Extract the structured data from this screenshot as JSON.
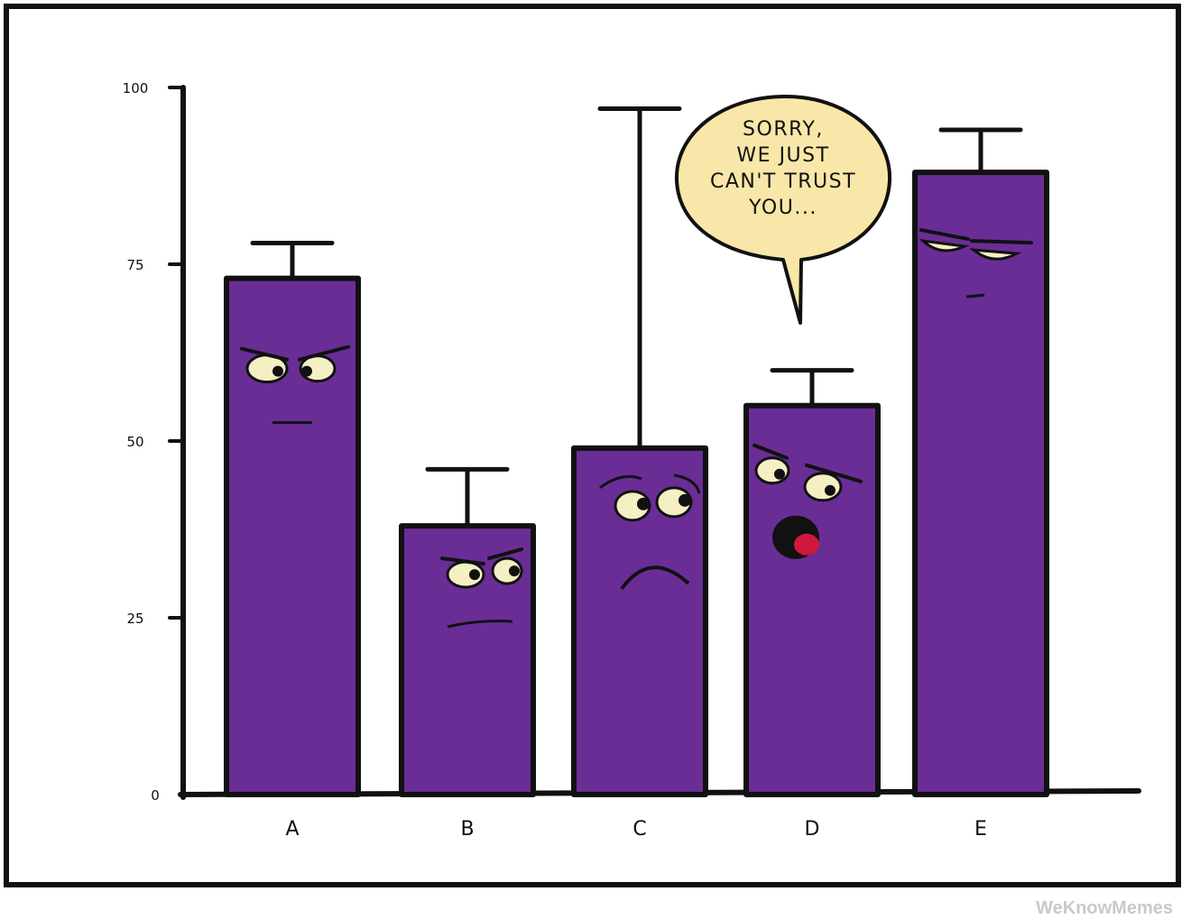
{
  "chart_data": {
    "type": "bar",
    "categories": [
      "A",
      "B",
      "C",
      "D",
      "E"
    ],
    "values": [
      73,
      38,
      49,
      55,
      88
    ],
    "error_upper": [
      78,
      46,
      97,
      60,
      94
    ],
    "yticks": [
      "0",
      "25",
      "50",
      "75",
      "100"
    ],
    "ytick_values": [
      0,
      25,
      50,
      75,
      100
    ],
    "ylim": [
      0,
      100
    ],
    "grid": false,
    "colors": {
      "bar": "#6a2d96",
      "outline": "#111111",
      "eye": "#f5efc4",
      "bubble": "#f8e7a8",
      "mouth": "#d0183a"
    },
    "annotation": {
      "lines": [
        "SORRY,",
        "WE JUST",
        "CAN'T TRUST",
        "YOU..."
      ],
      "points_to": "D"
    }
  },
  "watermark": "WeKnowMemes"
}
